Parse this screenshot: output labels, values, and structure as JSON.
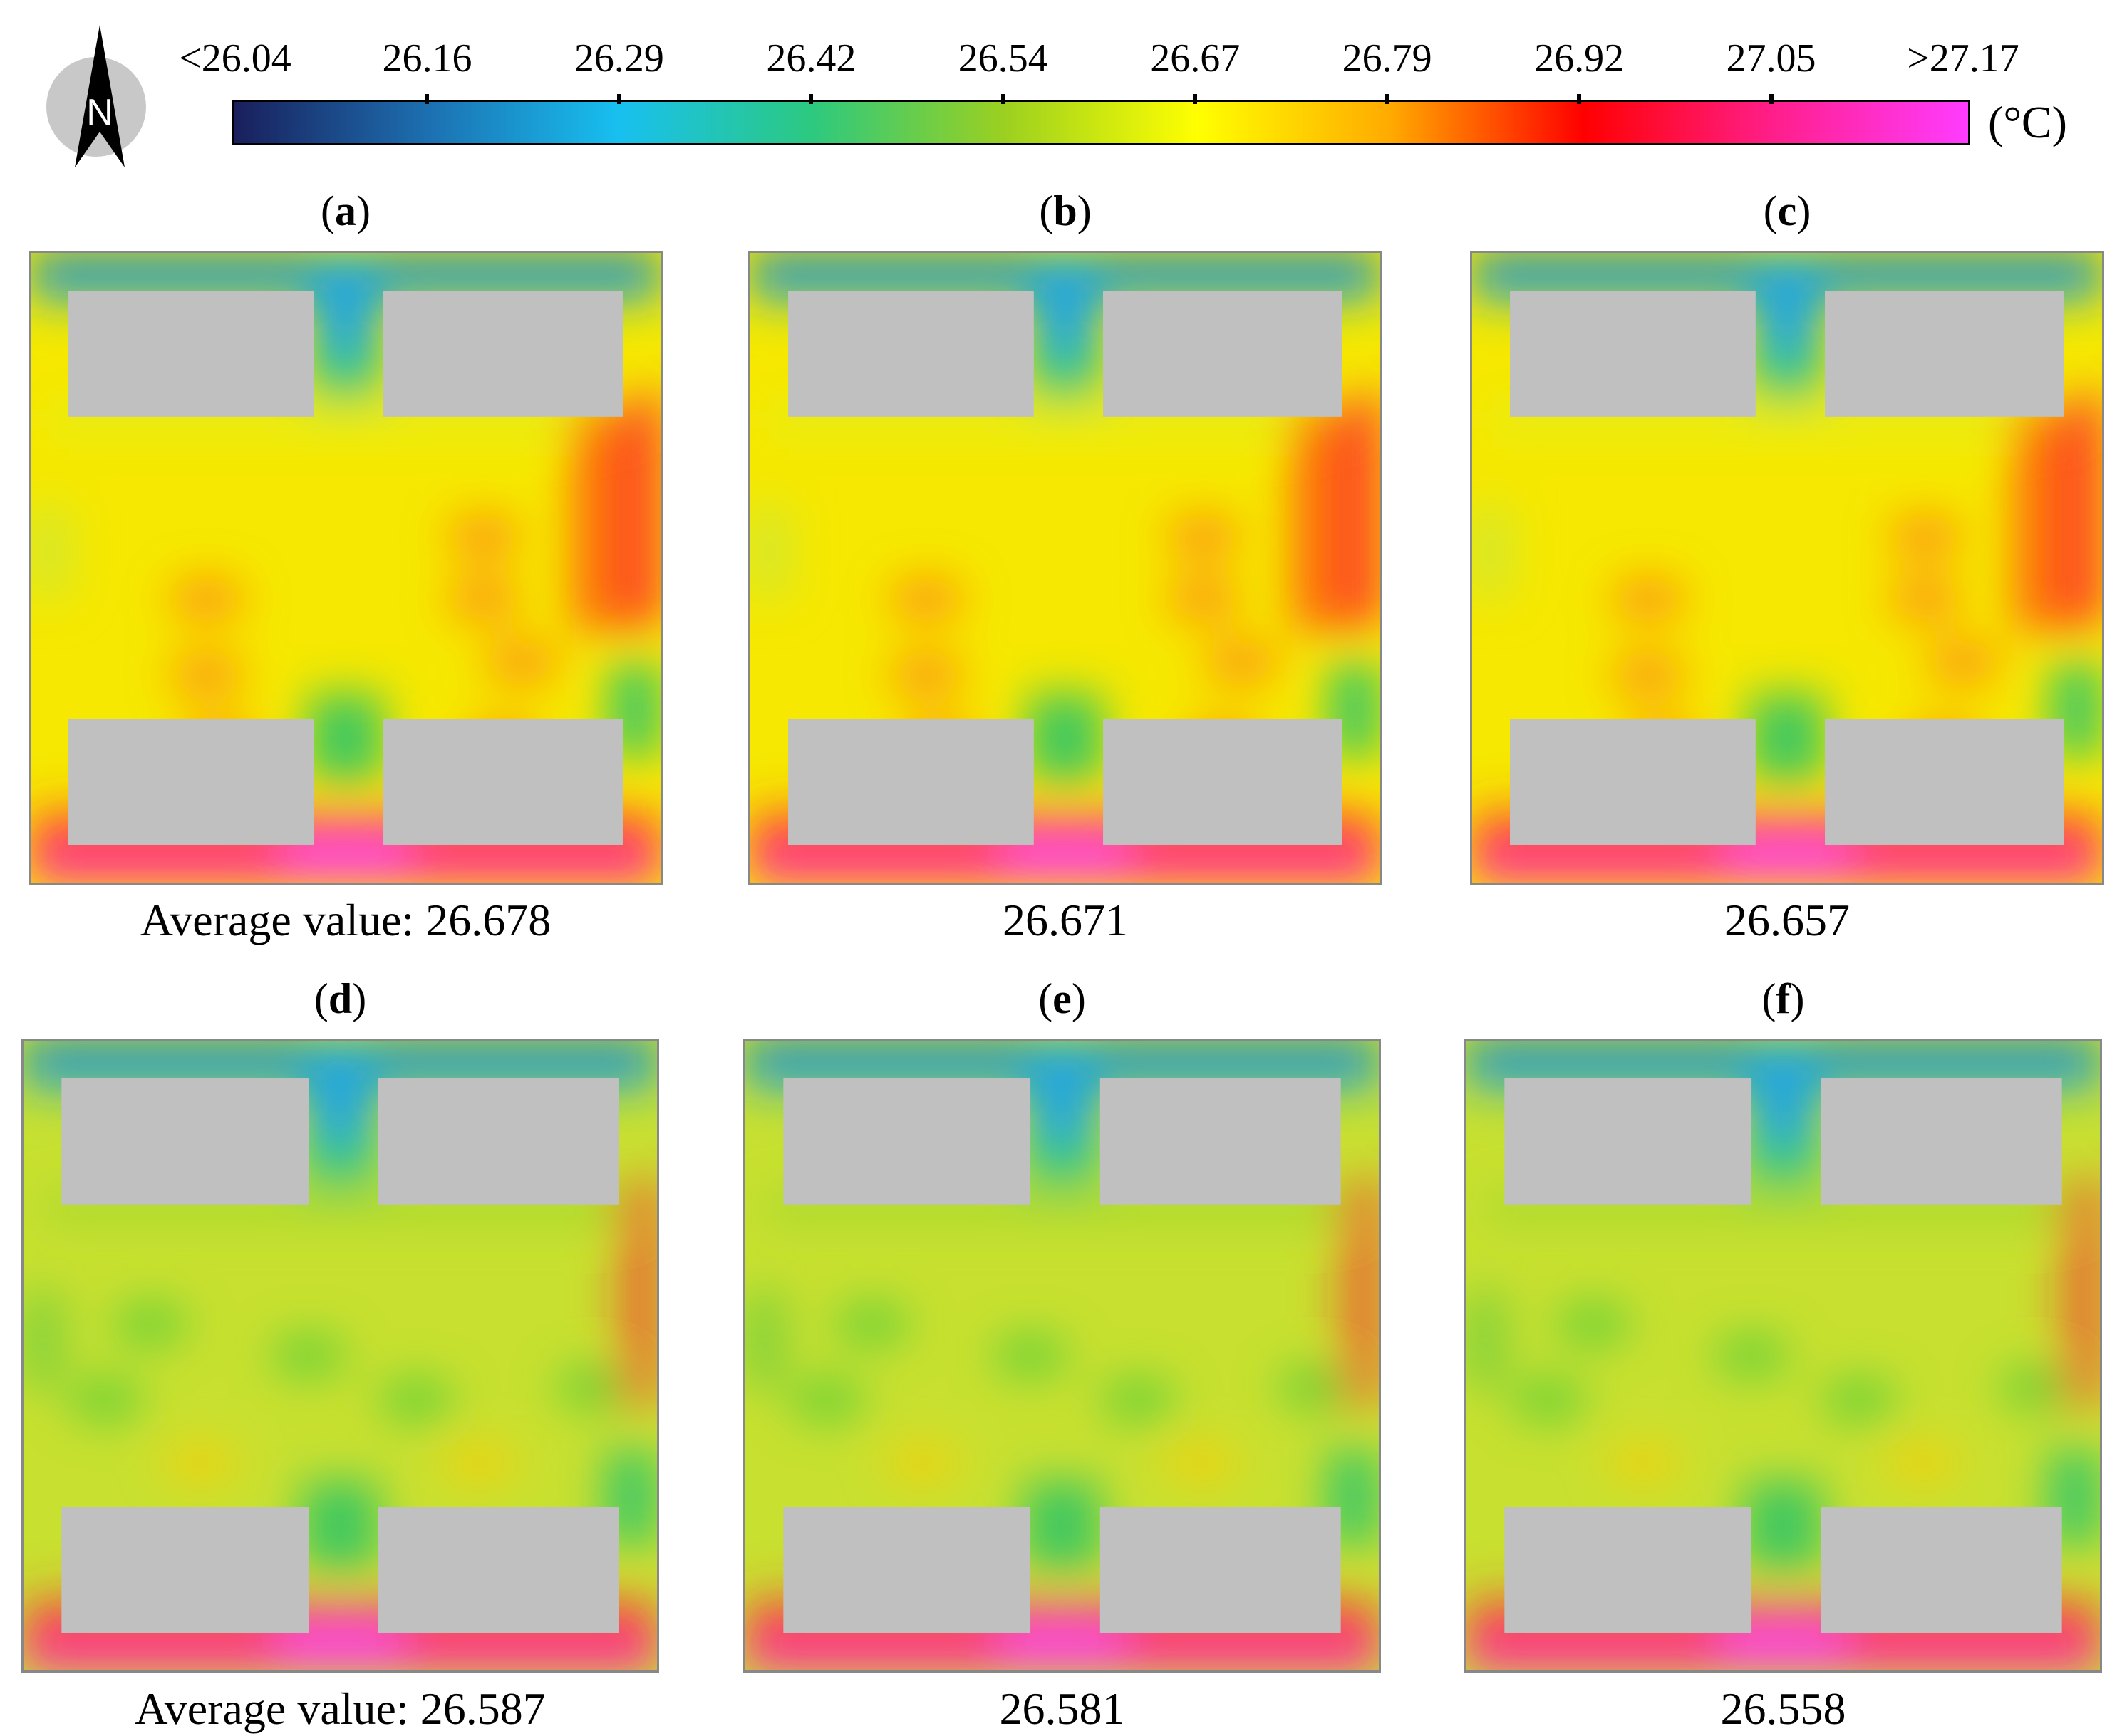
{
  "chart_data": {
    "type": "heatmap",
    "title": "",
    "unit": "(°C)",
    "colorbar": {
      "tick_labels": [
        "<26.04",
        "26.16",
        "26.29",
        "26.42",
        "26.54",
        "26.67",
        "26.79",
        "26.92",
        "27.05",
        ">27.17"
      ],
      "min": 26.04,
      "max": 27.17,
      "colors": [
        "#1a1f5c",
        "#1c6fb0",
        "#18c0f0",
        "#2cc980",
        "#9bd020",
        "#ffff00",
        "#ffaa00",
        "#ff0000",
        "#ff1f8c",
        "#ff3cff"
      ]
    },
    "north_arrow": "N",
    "panels": [
      {
        "id": "a",
        "label_open": "(",
        "label_letter": "a",
        "label_close": ")",
        "caption": "Average value: 26.678",
        "average": 26.678,
        "center_warmth": "warm"
      },
      {
        "id": "b",
        "label_open": "(",
        "label_letter": "b",
        "label_close": ")",
        "caption": "26.671",
        "average": 26.671,
        "center_warmth": "warm"
      },
      {
        "id": "c",
        "label_open": "(",
        "label_letter": "c",
        "label_close": ")",
        "caption": "26.657",
        "average": 26.657,
        "center_warmth": "warm"
      },
      {
        "id": "d",
        "label_open": "(",
        "label_letter": "d",
        "label_close": ")",
        "caption": "Average value: 26.587",
        "average": 26.587,
        "center_warmth": "cool"
      },
      {
        "id": "e",
        "label_open": "(",
        "label_letter": "e",
        "label_close": ")",
        "caption": "26.581",
        "average": 26.581,
        "center_warmth": "cool"
      },
      {
        "id": "f",
        "label_open": "(",
        "label_letter": "f",
        "label_close": ")",
        "caption": "26.558",
        "average": 26.558,
        "center_warmth": "cool"
      }
    ]
  }
}
